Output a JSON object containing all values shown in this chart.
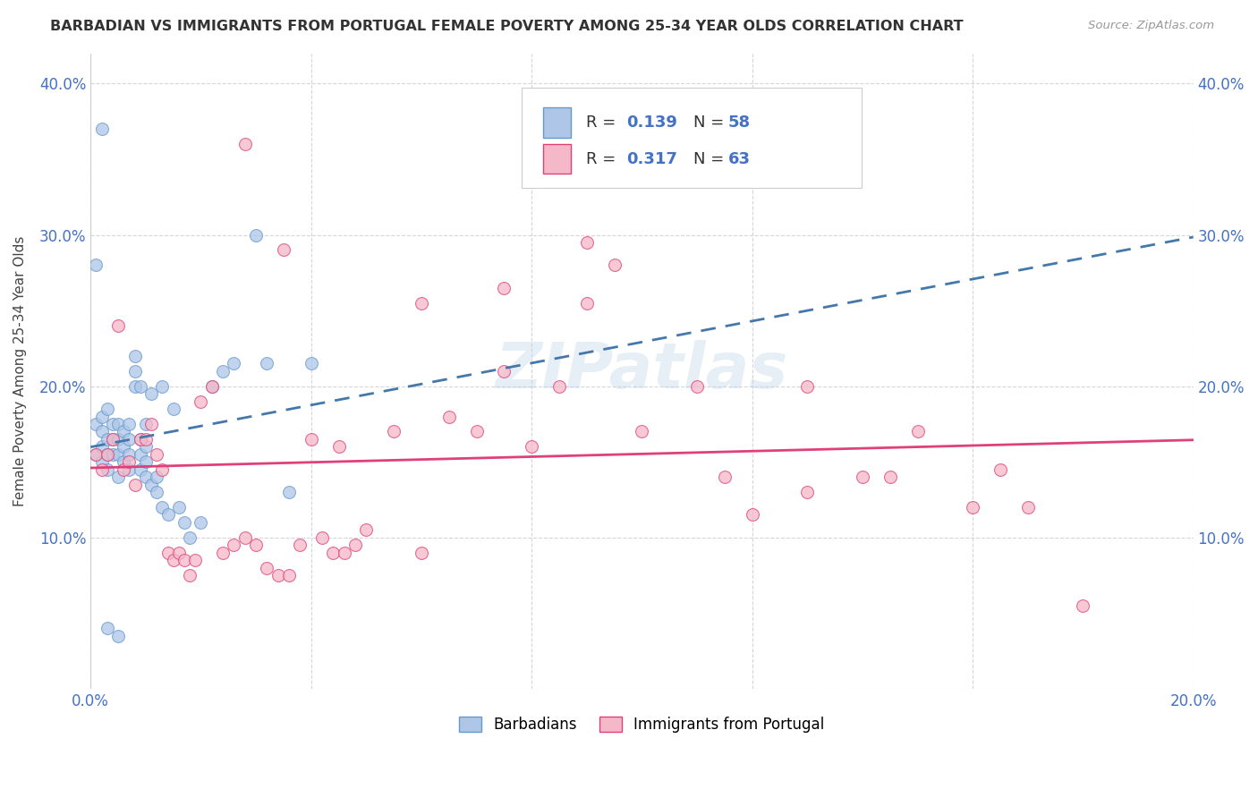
{
  "title": "BARBADIAN VS IMMIGRANTS FROM PORTUGAL FEMALE POVERTY AMONG 25-34 YEAR OLDS CORRELATION CHART",
  "source": "Source: ZipAtlas.com",
  "ylabel": "Female Poverty Among 25-34 Year Olds",
  "xlim": [
    0.0,
    0.2
  ],
  "ylim": [
    0.0,
    0.42
  ],
  "legend_label1": "Barbadians",
  "legend_label2": "Immigrants from Portugal",
  "barbadian_color": "#aec6e8",
  "portugal_color": "#f5b8c8",
  "trend1_color": "#6699cc",
  "trend2_color": "#cc2255",
  "trend_line1_color": "#aaaaaa",
  "trend_line2_color": "#e0407a",
  "watermark": "ZIPatlas",
  "barbadian_x": [
    0.001,
    0.001,
    0.002,
    0.002,
    0.002,
    0.002,
    0.003,
    0.003,
    0.003,
    0.003,
    0.004,
    0.004,
    0.004,
    0.005,
    0.005,
    0.005,
    0.005,
    0.006,
    0.006,
    0.006,
    0.007,
    0.007,
    0.007,
    0.007,
    0.008,
    0.008,
    0.008,
    0.009,
    0.009,
    0.009,
    0.009,
    0.01,
    0.01,
    0.01,
    0.01,
    0.011,
    0.011,
    0.012,
    0.012,
    0.013,
    0.013,
    0.014,
    0.015,
    0.016,
    0.017,
    0.018,
    0.02,
    0.022,
    0.024,
    0.026,
    0.03,
    0.032,
    0.036,
    0.04,
    0.005,
    0.003,
    0.002,
    0.001
  ],
  "barbadian_y": [
    0.155,
    0.175,
    0.15,
    0.16,
    0.17,
    0.18,
    0.145,
    0.155,
    0.165,
    0.185,
    0.155,
    0.165,
    0.175,
    0.14,
    0.155,
    0.165,
    0.175,
    0.15,
    0.16,
    0.17,
    0.145,
    0.155,
    0.165,
    0.175,
    0.2,
    0.21,
    0.22,
    0.145,
    0.155,
    0.165,
    0.2,
    0.14,
    0.15,
    0.16,
    0.175,
    0.135,
    0.195,
    0.13,
    0.14,
    0.12,
    0.2,
    0.115,
    0.185,
    0.12,
    0.11,
    0.1,
    0.11,
    0.2,
    0.21,
    0.215,
    0.3,
    0.215,
    0.13,
    0.215,
    0.035,
    0.04,
    0.37,
    0.28
  ],
  "portugal_x": [
    0.001,
    0.002,
    0.003,
    0.004,
    0.005,
    0.006,
    0.007,
    0.008,
    0.009,
    0.01,
    0.011,
    0.012,
    0.013,
    0.014,
    0.015,
    0.016,
    0.017,
    0.018,
    0.019,
    0.02,
    0.022,
    0.024,
    0.026,
    0.028,
    0.03,
    0.032,
    0.034,
    0.036,
    0.038,
    0.04,
    0.042,
    0.044,
    0.046,
    0.048,
    0.05,
    0.055,
    0.06,
    0.065,
    0.07,
    0.075,
    0.08,
    0.085,
    0.09,
    0.095,
    0.1,
    0.11,
    0.12,
    0.13,
    0.14,
    0.15,
    0.16,
    0.17,
    0.18,
    0.028,
    0.035,
    0.045,
    0.06,
    0.075,
    0.09,
    0.115,
    0.13,
    0.145,
    0.165
  ],
  "portugal_y": [
    0.155,
    0.145,
    0.155,
    0.165,
    0.24,
    0.145,
    0.15,
    0.135,
    0.165,
    0.165,
    0.175,
    0.155,
    0.145,
    0.09,
    0.085,
    0.09,
    0.085,
    0.075,
    0.085,
    0.19,
    0.2,
    0.09,
    0.095,
    0.1,
    0.095,
    0.08,
    0.075,
    0.075,
    0.095,
    0.165,
    0.1,
    0.09,
    0.09,
    0.095,
    0.105,
    0.17,
    0.09,
    0.18,
    0.17,
    0.21,
    0.16,
    0.2,
    0.295,
    0.28,
    0.17,
    0.2,
    0.115,
    0.2,
    0.14,
    0.17,
    0.12,
    0.12,
    0.055,
    0.36,
    0.29,
    0.16,
    0.255,
    0.265,
    0.255,
    0.14,
    0.13,
    0.14,
    0.145
  ]
}
